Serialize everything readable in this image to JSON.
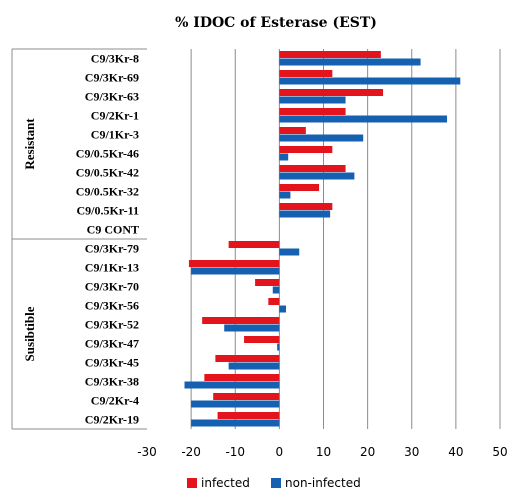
{
  "chart_data": {
    "type": "bar",
    "orientation": "horizontal",
    "title": "% IDOC of  Esterase (EST)",
    "categories": [
      "C9/3Kr-8",
      "C9/3Kr-69",
      "C9/3Kr-63",
      "C9/2Kr-1",
      "C9/1Kr-3",
      "C9/0.5Kr-46",
      "C9/0.5Kr-42",
      "C9/0.5Kr-32",
      "C9/0.5Kr-11",
      "C9 CONT",
      "C9/3Kr-79",
      "C9/1Kr-13",
      "C9/3Kr-70",
      "C9/3Kr-56",
      "C9/3Kr-52",
      "C9/3Kr-47",
      "C9/3Kr-45",
      "C9/3Kr-38",
      "C9/2Kr-4",
      "C9/2Kr-19"
    ],
    "groups": [
      {
        "name": "Resistant",
        "start": 0,
        "end": 9
      },
      {
        "name": "Susibtible",
        "start": 10,
        "end": 19
      }
    ],
    "series": [
      {
        "name": "infected",
        "color": "#e3141b",
        "values": [
          23,
          12,
          23.5,
          15,
          6,
          12,
          15,
          9,
          12,
          0,
          -11.5,
          -20.5,
          -5.5,
          -2.5,
          -17.5,
          -8,
          -14.5,
          -17,
          -15,
          -14
        ]
      },
      {
        "name": "non-infected",
        "color": "#1560b0",
        "values": [
          32,
          41,
          15,
          38,
          19,
          2,
          17,
          2.5,
          11.5,
          0,
          4.5,
          -20,
          -1.5,
          1.5,
          -12.5,
          -0.5,
          -11.5,
          -21.5,
          -20,
          -20
        ]
      }
    ],
    "xlim": [
      -30,
      50
    ],
    "xticks": [
      "-30",
      "-20",
      "-10",
      "0",
      "10",
      "20",
      "30",
      "40",
      "50"
    ],
    "grid": true,
    "legend_position": "bottom"
  }
}
